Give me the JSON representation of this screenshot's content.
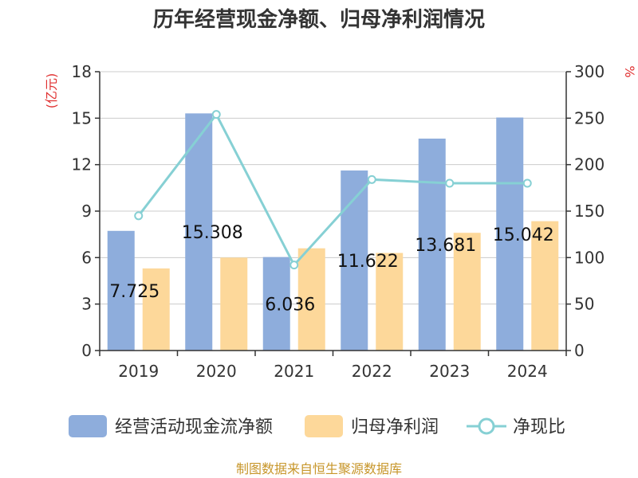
{
  "chart_data": {
    "type": "bar",
    "title": "历年经营现金净额、归母净利润情况",
    "categories": [
      "2019",
      "2020",
      "2021",
      "2022",
      "2023",
      "2024"
    ],
    "series": [
      {
        "name": "经营活动现金流净额",
        "type": "bar",
        "axis": "left",
        "color": "#8eaddc",
        "values": [
          7.725,
          15.308,
          6.036,
          11.622,
          13.681,
          15.042
        ],
        "labels": [
          "7.725",
          "15.308",
          "6.036",
          "11.622",
          "13.681",
          "15.042"
        ]
      },
      {
        "name": "归母净利润",
        "type": "bar",
        "axis": "left",
        "color": "#fdd89a",
        "values": [
          5.3,
          6.0,
          6.6,
          6.3,
          7.6,
          8.35
        ]
      },
      {
        "name": "净现比",
        "type": "line",
        "axis": "right",
        "color": "#86d0d4",
        "values": [
          145.0,
          254.0,
          92.0,
          184.0,
          180.0,
          180.0
        ]
      }
    ],
    "y_left": {
      "unit": "(亿元)",
      "min": 0,
      "max": 18,
      "ticks": [
        0,
        3,
        6,
        9,
        12,
        15,
        18
      ]
    },
    "y_right": {
      "unit": "%",
      "min": 0,
      "max": 300,
      "ticks": [
        0,
        50,
        100,
        150,
        200,
        250,
        300
      ]
    },
    "grid": true,
    "legend_position": "bottom"
  },
  "source_note": "制图数据来自恒生聚源数据库"
}
